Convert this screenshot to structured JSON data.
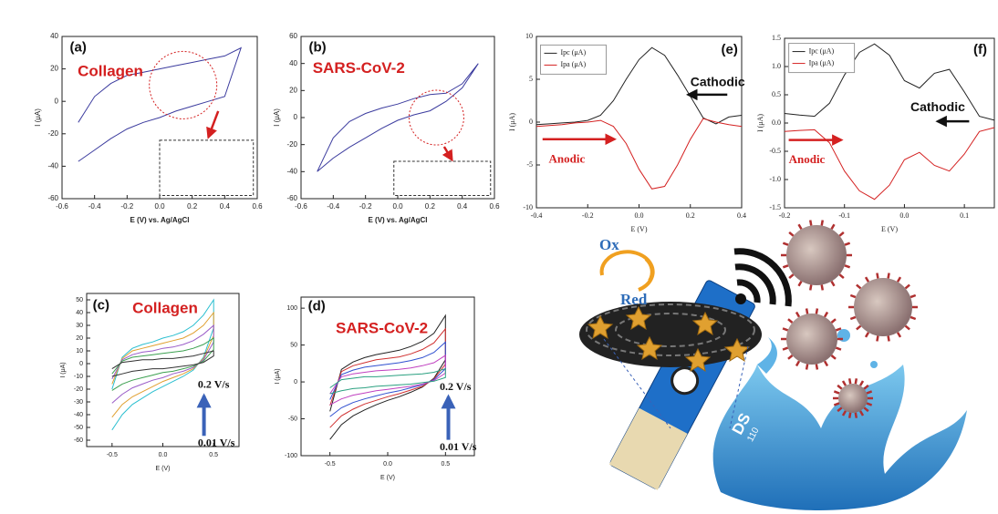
{
  "chart_data": [
    {
      "type": "line",
      "panel": "(a)",
      "xlabel": "E (V) vs. Ag/AgCl",
      "ylabel": "I (μA)",
      "xlim": [
        -0.6,
        0.6
      ],
      "xticks": [
        -0.6,
        -0.4,
        -0.2,
        {
          "value": 0,
          "label": "0.0"
        },
        0.2,
        0.4,
        0.6
      ],
      "ylim": [
        -60,
        40
      ],
      "yticks": [
        -60,
        -40,
        -20,
        0,
        20,
        40
      ],
      "x": [
        -0.5,
        -0.4,
        -0.3,
        -0.2,
        -0.1,
        0,
        0.1,
        0.2,
        0.3,
        0.4,
        0.5,
        0.5,
        0.4,
        0.3,
        0.2,
        0.1,
        0,
        -0.1,
        -0.2,
        -0.3,
        -0.4,
        -0.5
      ],
      "series": [
        {
          "color": "#3b3b9e",
          "values": [
            -13,
            3,
            11,
            16,
            18,
            20,
            22,
            24,
            26,
            28,
            33,
            33,
            3,
            0,
            -3,
            -6,
            -10,
            -13,
            -17,
            -23,
            -30,
            -37
          ]
        }
      ],
      "annotations": [
        {
          "text": "Collagen",
          "color": "#d42020"
        }
      ]
    },
    {
      "type": "line",
      "panel": "(b)",
      "xlabel": "E (V) vs. Ag/AgCl",
      "ylabel": "I (μA)",
      "xlim": [
        -0.6,
        0.6
      ],
      "xticks": [
        -0.6,
        -0.4,
        -0.2,
        {
          "value": 0,
          "label": "0.0"
        },
        0.2,
        0.4,
        0.6
      ],
      "ylim": [
        -60,
        60
      ],
      "yticks": [
        -60,
        -40,
        -20,
        0,
        20,
        40,
        60
      ],
      "x": [
        -0.5,
        -0.4,
        -0.3,
        -0.2,
        -0.1,
        0,
        0.1,
        0.2,
        0.3,
        0.4,
        0.5,
        0.5,
        0.4,
        0.3,
        0.2,
        0.1,
        0,
        -0.1,
        -0.2,
        -0.3,
        -0.4,
        -0.5
      ],
      "series": [
        {
          "color": "#3b3b9e",
          "values": [
            -40,
            -30,
            -22,
            -15,
            -8,
            -2,
            2,
            5,
            12,
            22,
            40,
            40,
            25,
            18,
            17,
            14,
            10,
            7,
            3,
            -3,
            -15,
            -40
          ]
        }
      ],
      "annotations": [
        {
          "text": "SARS-CoV-2",
          "color": "#d42020"
        }
      ]
    },
    {
      "type": "line",
      "panel": "(e)",
      "xlabel": "E (V)",
      "ylabel": "I (μA)",
      "legend": "upper left",
      "xlim": [
        -0.4,
        0.4
      ],
      "xticks": [
        -0.4,
        -0.2,
        {
          "value": 0,
          "label": "0.0"
        },
        0.2,
        0.4
      ],
      "ylim": [
        -10,
        10
      ],
      "yticks": [
        -10,
        -5,
        0,
        5,
        10
      ],
      "x": [
        -0.4,
        -0.35,
        -0.3,
        -0.25,
        -0.2,
        -0.15,
        -0.1,
        -0.05,
        0,
        0.05,
        0.1,
        0.15,
        0.2,
        0.25,
        0.3,
        0.35,
        0.4
      ],
      "series": [
        {
          "name": "Ipc (μA)",
          "color": "#222222",
          "values": [
            -0.3,
            -0.2,
            -0.1,
            0,
            0.2,
            0.8,
            2.5,
            5,
            7.3,
            8.7,
            7.8,
            5.5,
            3,
            0.5,
            -0.2,
            0.6,
            0.8
          ]
        },
        {
          "name": "Ipa (μA)",
          "color": "#d42020",
          "values": [
            -0.5,
            -0.4,
            -0.3,
            -0.1,
            0,
            0.2,
            -0.5,
            -2.5,
            -5.5,
            -7.8,
            -7.5,
            -5,
            -2,
            0.4,
            0,
            -0.3,
            -0.5
          ]
        }
      ],
      "annotations": [
        {
          "text": "Cathodic",
          "color": "#111111"
        },
        {
          "text": "Anodic",
          "color": "#d42020"
        }
      ]
    },
    {
      "type": "line",
      "panel": "(f)",
      "xlabel": "E (V)",
      "ylabel": "I (μA)",
      "legend": "upper left",
      "xlim": [
        -0.2,
        0.15
      ],
      "xticks": [
        -0.2,
        -0.1,
        {
          "value": 0,
          "label": "0.0"
        },
        0.1
      ],
      "ylim": [
        -1.5,
        1.5
      ],
      "yticks": [
        -1.5,
        {
          "value": -1,
          "label": "-1.0"
        },
        -0.5,
        {
          "value": 0,
          "label": "0.0"
        },
        0.5,
        {
          "value": 1,
          "label": "1.0"
        },
        1.5
      ],
      "x": [
        -0.2,
        -0.175,
        -0.15,
        -0.125,
        -0.1,
        -0.075,
        -0.05,
        -0.025,
        0,
        0.025,
        0.05,
        0.075,
        0.1,
        0.125,
        0.15
      ],
      "series": [
        {
          "name": "Ipc (μA)",
          "color": "#222222",
          "values": [
            0.17,
            0.14,
            0.12,
            0.35,
            0.85,
            1.25,
            1.4,
            1.2,
            0.75,
            0.62,
            0.88,
            0.95,
            0.55,
            0.12,
            0.05
          ]
        },
        {
          "name": "Ipa (μA)",
          "color": "#d42020",
          "values": [
            -0.15,
            -0.13,
            -0.12,
            -0.35,
            -0.85,
            -1.2,
            -1.35,
            -1.1,
            -0.65,
            -0.52,
            -0.75,
            -0.85,
            -0.55,
            -0.15,
            -0.08
          ]
        }
      ],
      "annotations": [
        {
          "text": "Cathodic",
          "color": "#111111"
        },
        {
          "text": "Anodic",
          "color": "#d42020"
        }
      ]
    },
    {
      "type": "line",
      "panel": "(c)",
      "xlabel": "E (V)",
      "ylabel": "I (μA)",
      "xlim": [
        -0.75,
        0.75
      ],
      "xticks": [
        -0.5,
        {
          "value": 0,
          "label": "0.0"
        },
        0.5
      ],
      "ylim": [
        -65,
        55
      ],
      "yticks": [
        -60,
        -50,
        -40,
        -30,
        -20,
        -10,
        0,
        10,
        20,
        30,
        40,
        50
      ],
      "x": [
        -0.5,
        -0.4,
        -0.3,
        -0.2,
        -0.1,
        0,
        0.1,
        0.2,
        0.3,
        0.4,
        0.5,
        0.5,
        0.4,
        0.3,
        0.2,
        0.1,
        0,
        -0.1,
        -0.2,
        -0.3,
        -0.4,
        -0.5
      ],
      "series": [
        {
          "color": "#2bbfd0",
          "values": [
            -52,
            -40,
            -32,
            -27,
            -22,
            -18,
            -14,
            -10,
            -5,
            5,
            28,
            50,
            38,
            30,
            25,
            22,
            20,
            17,
            15,
            12,
            5,
            -20
          ]
        },
        {
          "color": "#e0a030",
          "values": [
            -42,
            -32,
            -26,
            -22,
            -18,
            -14,
            -11,
            -8,
            -4,
            4,
            22,
            40,
            30,
            24,
            20,
            18,
            16,
            14,
            12,
            10,
            4,
            -16
          ]
        },
        {
          "color": "#9a5cc8",
          "values": [
            -31,
            -24,
            -19,
            -16,
            -13,
            -11,
            -8,
            -6,
            -3,
            3,
            17,
            30,
            23,
            18,
            15,
            13,
            12,
            10,
            9,
            7,
            3,
            -12
          ]
        },
        {
          "color": "#3ca050",
          "values": [
            -21,
            -16,
            -13,
            -11,
            -9,
            -7,
            -6,
            -4,
            -2,
            2,
            11,
            20,
            15,
            12,
            10,
            9,
            8,
            7,
            6,
            5,
            2,
            -8
          ]
        },
        {
          "color": "#333333",
          "values": [
            -10,
            -8,
            -6,
            -5,
            -4,
            -4,
            -3,
            -2,
            -1,
            1,
            6,
            10,
            8,
            6,
            5,
            4,
            4,
            3,
            3,
            2,
            1,
            -4
          ]
        }
      ],
      "annotations": [
        {
          "text": "Collagen",
          "color": "#d42020"
        },
        {
          "text": "0.2 V/s",
          "color": "#111111"
        },
        {
          "text": "0.01 V/s",
          "color": "#111111"
        }
      ]
    },
    {
      "type": "line",
      "panel": "(d)",
      "xlabel": "E (V)",
      "ylabel": "I (μA)",
      "xlim": [
        -0.75,
        0.75
      ],
      "xticks": [
        -0.5,
        {
          "value": 0,
          "label": "0.0"
        },
        0.5
      ],
      "ylim": [
        -100,
        115
      ],
      "yticks": [
        -100,
        -50,
        0,
        50,
        100
      ],
      "x": [
        -0.5,
        -0.4,
        -0.3,
        -0.2,
        -0.1,
        0,
        0.1,
        0.2,
        0.3,
        0.4,
        0.5,
        0.5,
        0.4,
        0.3,
        0.2,
        0.1,
        0,
        -0.1,
        -0.2,
        -0.3,
        -0.4,
        -0.5
      ],
      "series": [
        {
          "color": "#222222",
          "values": [
            -78,
            -58,
            -46,
            -38,
            -31,
            -25,
            -20,
            -14,
            -7,
            5,
            30,
            90,
            66,
            55,
            48,
            43,
            40,
            37,
            33,
            27,
            17,
            -40
          ]
        },
        {
          "color": "#d03030",
          "values": [
            -62,
            -46,
            -37,
            -30,
            -25,
            -20,
            -16,
            -11,
            -6,
            4,
            24,
            72,
            53,
            44,
            38,
            34,
            32,
            30,
            26,
            22,
            14,
            -32
          ]
        },
        {
          "color": "#3050d0",
          "values": [
            -47,
            -35,
            -28,
            -23,
            -19,
            -15,
            -12,
            -8,
            -4,
            3,
            18,
            54,
            40,
            33,
            29,
            26,
            24,
            22,
            20,
            16,
            10,
            -24
          ]
        },
        {
          "color": "#c040c0",
          "values": [
            -31,
            -23,
            -18,
            -15,
            -12,
            -10,
            -8,
            -6,
            -3,
            2,
            12,
            36,
            26,
            22,
            19,
            17,
            16,
            15,
            13,
            11,
            7,
            -16
          ]
        },
        {
          "color": "#2aa080",
          "values": [
            -16,
            -12,
            -9,
            -8,
            -6,
            -5,
            -4,
            -3,
            -1,
            1,
            6,
            18,
            13,
            11,
            10,
            9,
            8,
            7,
            7,
            5,
            3,
            -8
          ]
        }
      ],
      "annotations": [
        {
          "text": "SARS-CoV-2",
          "color": "#d42020"
        },
        {
          "text": "0.2 V/s",
          "color": "#111111"
        },
        {
          "text": "0.01 V/s",
          "color": "#111111"
        }
      ]
    }
  ],
  "illustration": {
    "labels": [
      "Ox",
      "Red",
      "DS",
      "110"
    ]
  }
}
